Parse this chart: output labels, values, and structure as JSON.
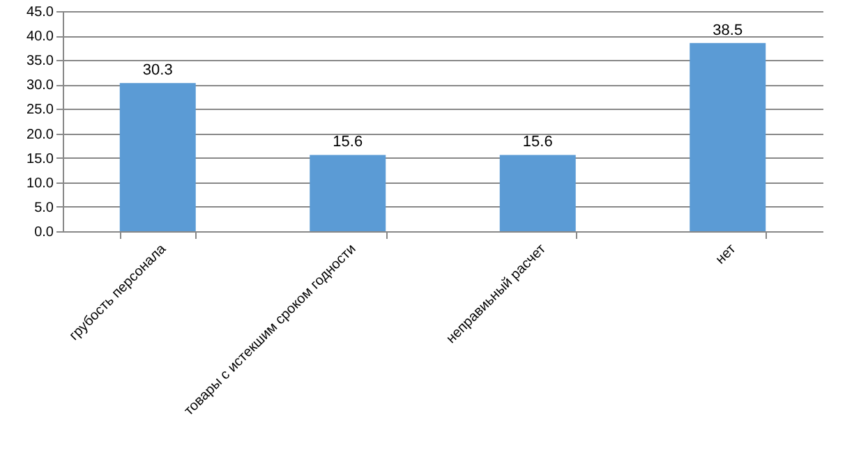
{
  "chart_data": {
    "type": "bar",
    "categories": [
      "грубость персонала",
      "товары с истекшим сроком годности",
      "неправиьный расчет",
      "нет"
    ],
    "values": [
      30.3,
      15.6,
      15.6,
      38.5
    ],
    "color": "#5b9bd5",
    "ylim": [
      0,
      45
    ],
    "yticks": [
      {
        "value": 0,
        "label": "0.0"
      },
      {
        "value": 5,
        "label": "5.0"
      },
      {
        "value": 10,
        "label": "10.0"
      },
      {
        "value": 15,
        "label": "15.0"
      },
      {
        "value": 20,
        "label": "20.0"
      },
      {
        "value": 25,
        "label": "25.0"
      },
      {
        "value": 30,
        "label": "30.0"
      },
      {
        "value": 35,
        "label": "35.0"
      },
      {
        "value": 40,
        "label": "40.0"
      },
      {
        "value": 45,
        "label": "45.0"
      }
    ],
    "grid": "y",
    "data_labels": true
  }
}
